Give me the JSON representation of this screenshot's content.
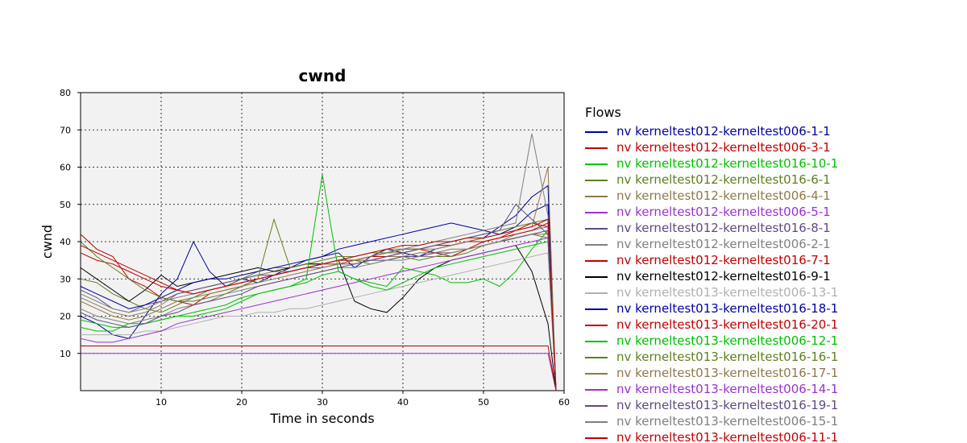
{
  "chart_data": {
    "type": "line",
    "title": "cwnd",
    "xlabel": "Time in seconds",
    "ylabel": "cwnd",
    "xlim": [
      0,
      60
    ],
    "ylim": [
      0,
      80
    ],
    "x_ticks": [
      10,
      20,
      30,
      40,
      50,
      60
    ],
    "y_ticks": [
      10,
      20,
      30,
      40,
      50,
      60,
      70,
      80
    ],
    "grid": true,
    "legend_title": "Flows",
    "legend_position": "right",
    "x": [
      0,
      2,
      4,
      6,
      8,
      10,
      12,
      14,
      16,
      18,
      20,
      22,
      24,
      26,
      28,
      30,
      32,
      34,
      36,
      38,
      40,
      42,
      44,
      46,
      48,
      50,
      52,
      54,
      56,
      58,
      59
    ],
    "series": [
      {
        "name": "nv kerneltest012-kerneltest006-1-1",
        "color": "#0000a0",
        "values": [
          20,
          18,
          15,
          14,
          20,
          26,
          30,
          40,
          32,
          28,
          30,
          29,
          31,
          33,
          35,
          36,
          37,
          33,
          36,
          38,
          37,
          36,
          38,
          39,
          40,
          41,
          44,
          47,
          52,
          55,
          0
        ]
      },
      {
        "name": "nv kerneltest012-kerneltest006-3-1",
        "color": "#c00000",
        "values": [
          42,
          38,
          36,
          30,
          28,
          25,
          24,
          23,
          26,
          27,
          28,
          30,
          31,
          32,
          33,
          34,
          34,
          35,
          36,
          36,
          37,
          38,
          37,
          36,
          38,
          40,
          41,
          43,
          45,
          44,
          0
        ]
      },
      {
        "name": "nv kerneltest012-kerneltest016-10-1",
        "color": "#00c000",
        "values": [
          17,
          16,
          16,
          18,
          18,
          19,
          20,
          20,
          21,
          22,
          24,
          26,
          27,
          28,
          29,
          31,
          32,
          30,
          29,
          28,
          33,
          32,
          31,
          29,
          29,
          30,
          28,
          32,
          38,
          43,
          0
        ]
      },
      {
        "name": "nv kerneltest012-kerneltest016-6-1",
        "color": "#5f7f1f",
        "values": [
          30,
          29,
          26,
          24,
          22,
          21,
          23,
          25,
          27,
          28,
          30,
          32,
          33,
          33,
          34,
          34,
          35,
          35,
          34,
          35,
          36,
          35,
          36,
          36,
          37,
          39,
          40,
          41,
          42,
          41,
          0
        ]
      },
      {
        "name": "nv kerneltest012-kerneltest006-4-1",
        "color": "#8c7a4a",
        "values": [
          25,
          23,
          21,
          20,
          21,
          23,
          26,
          27,
          28,
          29,
          30,
          31,
          32,
          32,
          33,
          34,
          34,
          35,
          35,
          36,
          36,
          37,
          37,
          38,
          38,
          39,
          40,
          41,
          42,
          42,
          0
        ]
      },
      {
        "name": "nv kerneltest012-kerneltest006-5-1",
        "color": "#9933cc",
        "values": [
          10,
          10,
          10,
          10,
          10,
          10,
          10,
          10,
          10,
          10,
          10,
          10,
          10,
          10,
          10,
          10,
          10,
          10,
          10,
          10,
          10,
          10,
          10,
          10,
          10,
          10,
          10,
          10,
          10,
          10,
          0
        ]
      },
      {
        "name": "nv kerneltest012-kerneltest016-8-1",
        "color": "#5f4a7f",
        "values": [
          27,
          25,
          22,
          21,
          23,
          24,
          26,
          27,
          28,
          29,
          30,
          31,
          31,
          32,
          33,
          33,
          34,
          34,
          35,
          35,
          36,
          36,
          37,
          37,
          38,
          39,
          40,
          41,
          42,
          43,
          0
        ]
      },
      {
        "name": "nv kerneltest012-kerneltest006-2-1",
        "color": "#808080",
        "values": [
          22,
          20,
          19,
          18,
          19,
          20,
          22,
          23,
          24,
          26,
          27,
          28,
          29,
          30,
          31,
          32,
          33,
          33,
          34,
          35,
          35,
          36,
          36,
          37,
          38,
          39,
          40,
          42,
          43,
          44,
          0
        ]
      },
      {
        "name": "nv kerneltest012-kerneltest016-7-1",
        "color": "#c00000",
        "values": [
          12,
          12,
          12,
          12,
          12,
          12,
          12,
          12,
          12,
          12,
          12,
          12,
          12,
          12,
          12,
          12,
          12,
          12,
          12,
          12,
          12,
          12,
          12,
          12,
          12,
          12,
          12,
          12,
          12,
          12,
          0
        ]
      },
      {
        "name": "nv kerneltest012-kerneltest016-9-1",
        "color": "#000000",
        "values": [
          33,
          30,
          27,
          24,
          27,
          31,
          28,
          29,
          30,
          31,
          32,
          33,
          32,
          33,
          34,
          34,
          35,
          24,
          22,
          21,
          25,
          30,
          33,
          35,
          36,
          37,
          38,
          39,
          32,
          18,
          0
        ]
      },
      {
        "name": "nv kerneltest013-kerneltest006-13-1",
        "color": "#b0b0b0",
        "values": [
          15,
          15,
          15,
          15,
          16,
          16,
          17,
          18,
          19,
          20,
          20,
          21,
          21,
          22,
          22,
          23,
          24,
          25,
          26,
          27,
          28,
          29,
          30,
          31,
          32,
          33,
          34,
          35,
          36,
          37,
          0
        ]
      },
      {
        "name": "nv kerneltest013-kerneltest016-18-1",
        "color": "#0000a0",
        "values": [
          28,
          26,
          24,
          22,
          23,
          25,
          27,
          29,
          30,
          30,
          31,
          32,
          33,
          34,
          35,
          36,
          38,
          39,
          40,
          41,
          42,
          43,
          44,
          45,
          44,
          43,
          42,
          44,
          48,
          50,
          0
        ]
      },
      {
        "name": "nv kerneltest013-kerneltest016-20-1",
        "color": "#c00000",
        "values": [
          37,
          35,
          34,
          32,
          30,
          28,
          27,
          26,
          27,
          28,
          29,
          30,
          31,
          32,
          33,
          34,
          35,
          35,
          36,
          37,
          38,
          38,
          39,
          39,
          40,
          40,
          41,
          42,
          43,
          45,
          0
        ]
      },
      {
        "name": "nv kerneltest013-kerneltest006-12-1",
        "color": "#00c000",
        "values": [
          19,
          18,
          17,
          17,
          18,
          19,
          20,
          21,
          22,
          23,
          25,
          26,
          27,
          28,
          30,
          58,
          32,
          30,
          28,
          27,
          29,
          31,
          33,
          34,
          35,
          36,
          37,
          38,
          39,
          40,
          0
        ]
      },
      {
        "name": "nv kerneltest013-kerneltest016-16-1",
        "color": "#5f7f1f",
        "values": [
          40,
          36,
          33,
          30,
          27,
          25,
          24,
          24,
          25,
          26,
          28,
          30,
          46,
          33,
          34,
          35,
          36,
          36,
          37,
          37,
          38,
          38,
          39,
          40,
          41,
          42,
          43,
          44,
          45,
          46,
          0
        ]
      },
      {
        "name": "nv kerneltest013-kerneltest016-17-1",
        "color": "#8c7a4a",
        "values": [
          24,
          22,
          20,
          19,
          20,
          22,
          24,
          25,
          26,
          27,
          28,
          29,
          30,
          31,
          32,
          33,
          34,
          35,
          36,
          37,
          37,
          38,
          38,
          39,
          40,
          41,
          42,
          43,
          44,
          60,
          0
        ]
      },
      {
        "name": "nv kerneltest013-kerneltest006-14-1",
        "color": "#9933cc",
        "values": [
          14,
          13,
          13,
          14,
          15,
          16,
          18,
          19,
          20,
          21,
          22,
          23,
          24,
          25,
          26,
          27,
          28,
          29,
          30,
          31,
          32,
          33,
          34,
          35,
          36,
          37,
          38,
          39,
          40,
          41,
          0
        ]
      },
      {
        "name": "nv kerneltest013-kerneltest016-19-1",
        "color": "#5f4a7f",
        "values": [
          21,
          19,
          18,
          17,
          18,
          20,
          21,
          23,
          24,
          25,
          26,
          28,
          29,
          30,
          31,
          32,
          33,
          34,
          35,
          36,
          37,
          38,
          39,
          40,
          41,
          42,
          43,
          50,
          46,
          42,
          0
        ]
      },
      {
        "name": "nv kerneltest013-kerneltest006-15-1",
        "color": "#808080",
        "values": [
          26,
          24,
          22,
          21,
          22,
          24,
          25,
          26,
          27,
          28,
          29,
          30,
          31,
          32,
          33,
          34,
          35,
          36,
          37,
          38,
          38,
          39,
          40,
          41,
          42,
          43,
          44,
          45,
          69,
          47,
          0
        ]
      },
      {
        "name": "nv kerneltest013-kerneltest006-11-1",
        "color": "#c00000",
        "values": [
          39,
          37,
          35,
          33,
          31,
          29,
          27,
          26,
          27,
          28,
          29,
          30,
          31,
          32,
          33,
          34,
          35,
          36,
          37,
          38,
          39,
          39,
          40,
          40,
          41,
          41,
          42,
          43,
          44,
          46,
          0
        ]
      }
    ]
  }
}
